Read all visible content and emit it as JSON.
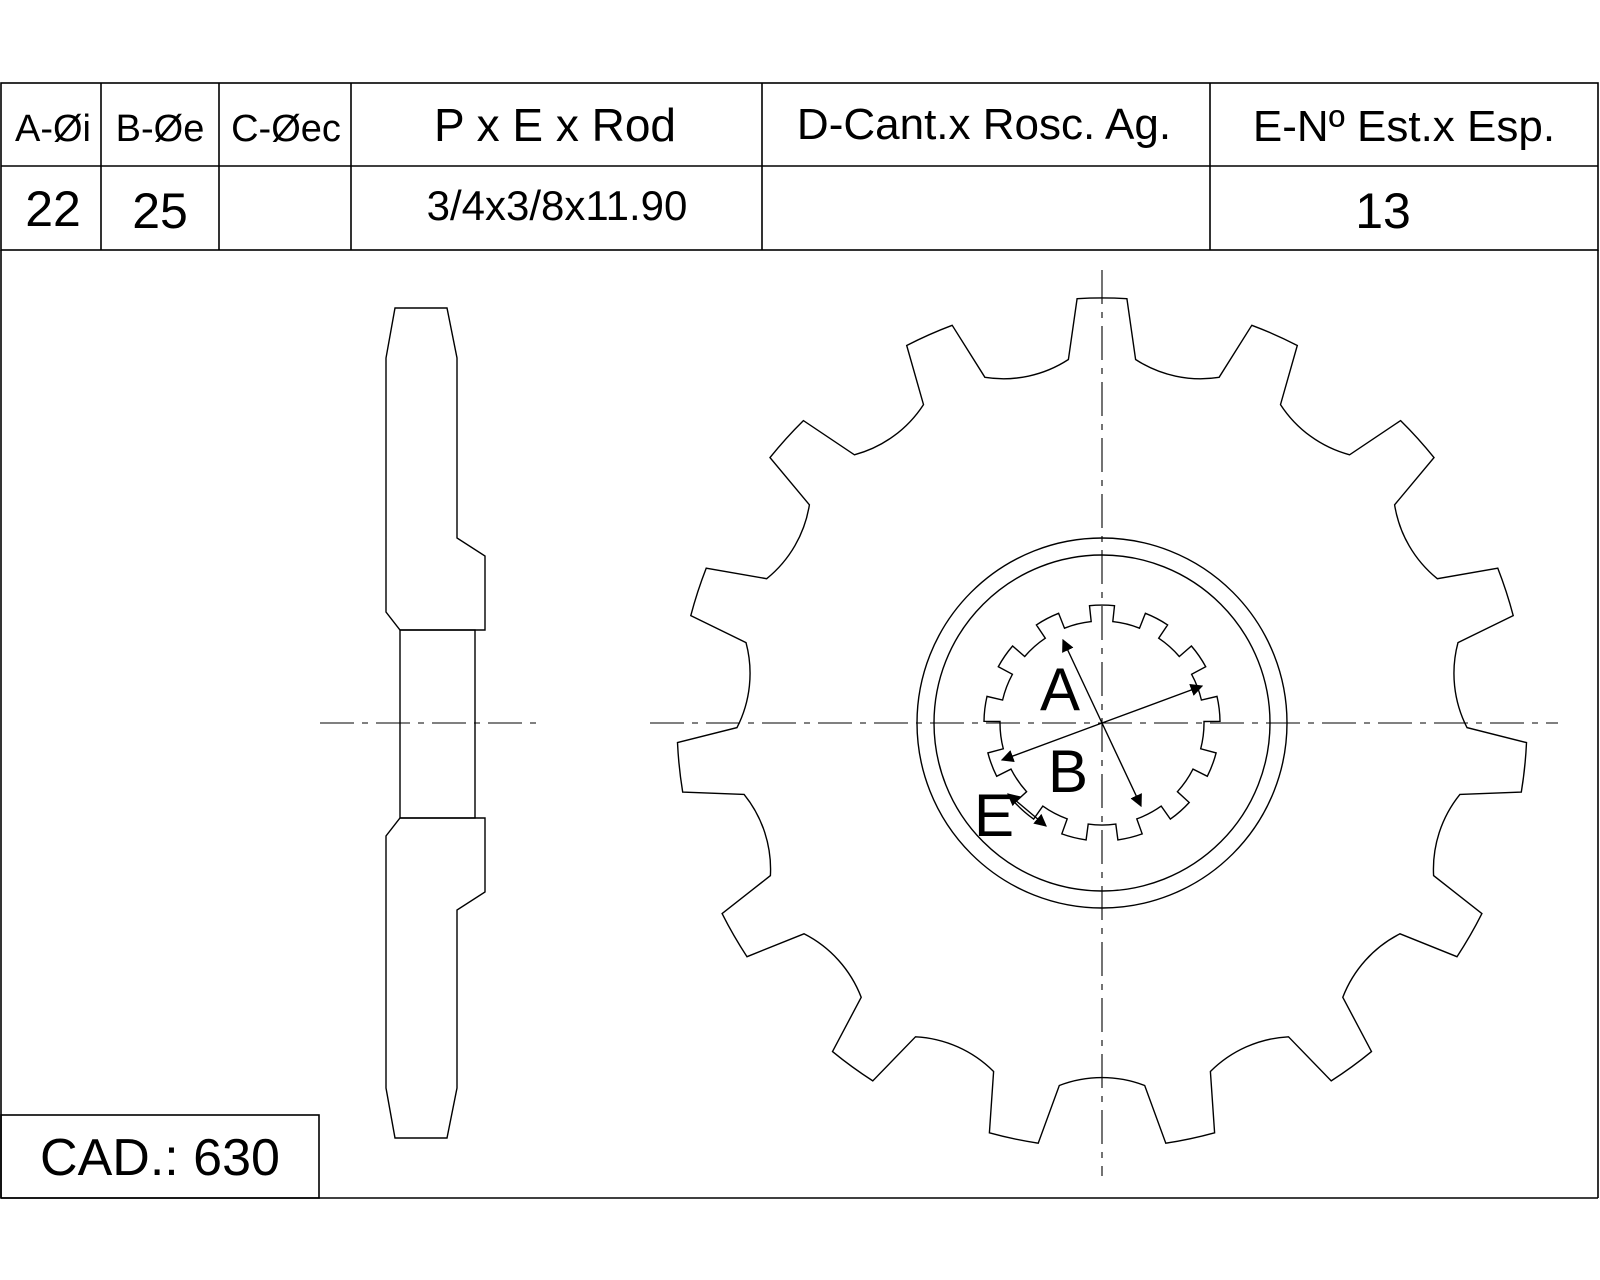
{
  "spec_table": {
    "headers": [
      "A-Øi",
      "B-Øe",
      "C-Øec",
      "P x E x Rod",
      "D-Cant.x Rosc. Ag.",
      "E-Nº Est.x Esp."
    ],
    "values": [
      "22",
      "25",
      "",
      "3/4x3/8x11.90",
      "",
      "13"
    ]
  },
  "chain_label": "CAD.: 630",
  "dimension_labels": {
    "a": "A",
    "b": "B",
    "e": "E"
  },
  "sprocket": {
    "teeth": 15,
    "hub_splines": 13
  }
}
